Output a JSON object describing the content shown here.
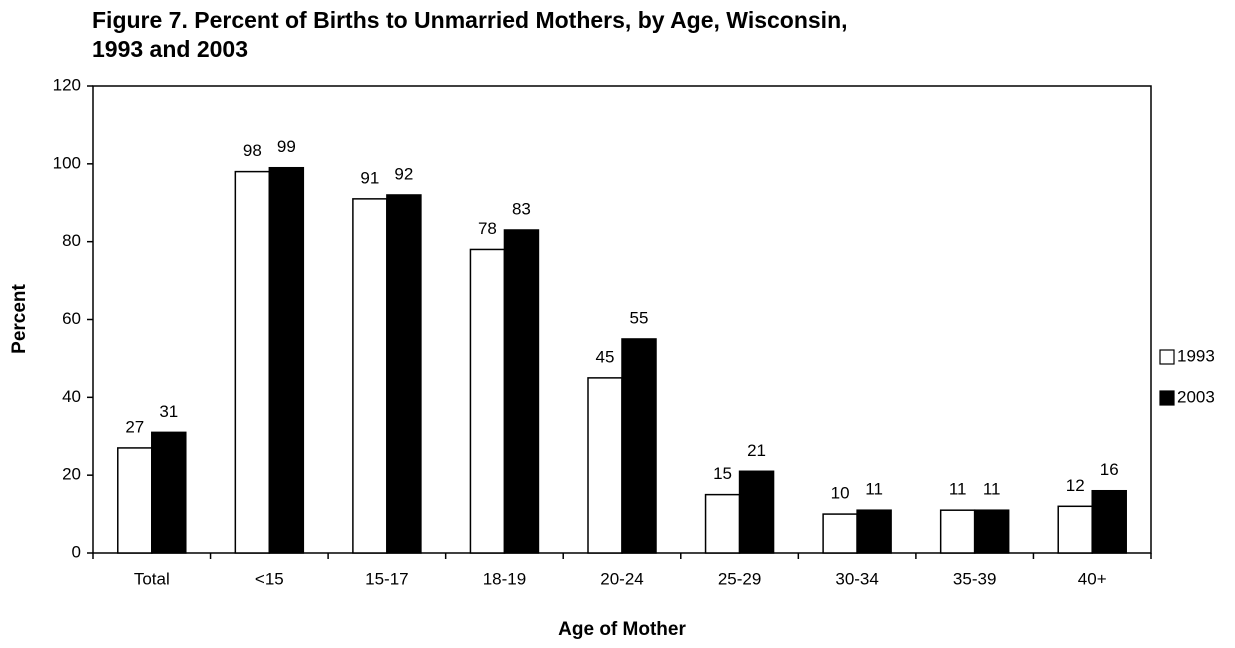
{
  "chart_data": {
    "type": "bar",
    "title": [
      "Figure 7.  Percent of Births to Unmarried Mothers, by Age, Wisconsin,",
      "1993 and 2003"
    ],
    "x_label": "Age of Mother",
    "y_label": "Percent",
    "categories": [
      "Total",
      "<15",
      "15-17",
      "18-19",
      "20-24",
      "25-29",
      "30-34",
      "35-39",
      "40+"
    ],
    "series": [
      {
        "name": "1993",
        "color": "#ffffff",
        "values": [
          27,
          98,
          91,
          78,
          45,
          15,
          10,
          11,
          12
        ]
      },
      {
        "name": "2003",
        "color": "#000000",
        "values": [
          31,
          99,
          92,
          83,
          55,
          21,
          11,
          11,
          16
        ]
      }
    ],
    "ylim": [
      0,
      120
    ],
    "yticks": [
      0,
      20,
      40,
      60,
      80,
      100,
      120
    ],
    "grid": false,
    "legend": "right"
  }
}
